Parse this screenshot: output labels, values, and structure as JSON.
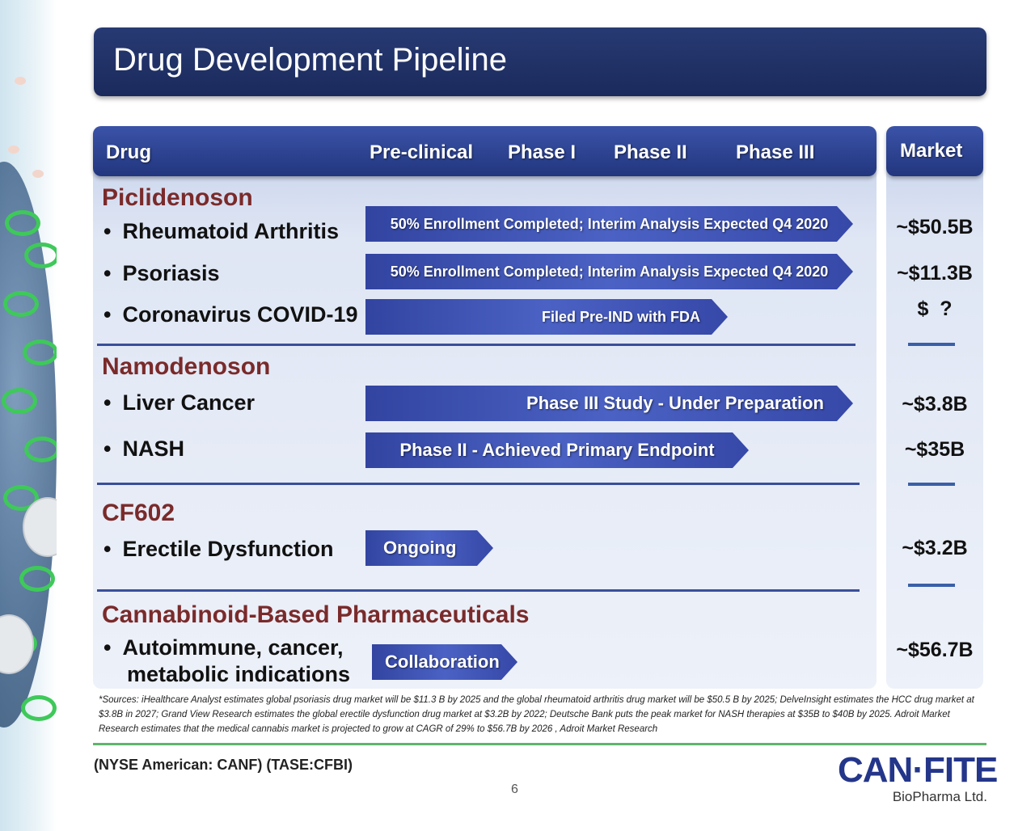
{
  "title": "Drug Development Pipeline",
  "header": {
    "drug": "Drug",
    "preclinical": "Pre-clinical",
    "phase1": "Phase I",
    "phase2": "Phase II",
    "phase3": "Phase III",
    "market": "Market"
  },
  "bullet": "•",
  "drugs": [
    {
      "name": "Piclidenoson",
      "indications": [
        {
          "label": "Rheumatoid Arthritis",
          "status": "50% Enrollment Completed; Interim Analysis Expected Q4 2020",
          "market": "~$50.5B"
        },
        {
          "label": "Psoriasis",
          "status": "50% Enrollment Completed; Interim Analysis Expected Q4 2020",
          "market": "~$11.3B"
        },
        {
          "label": "Coronavirus COVID-19",
          "status": "Filed Pre-IND with FDA",
          "market": "$  ?"
        }
      ]
    },
    {
      "name": "Namodenoson",
      "indications": [
        {
          "label": "Liver Cancer",
          "status": "Phase III Study - Under Preparation",
          "market": "~$3.8B"
        },
        {
          "label": "NASH",
          "status": "Phase II - Achieved Primary Endpoint",
          "market": "~$35B"
        }
      ]
    },
    {
      "name": "CF602",
      "indications": [
        {
          "label": "Erectile Dysfunction",
          "status": "Ongoing",
          "market": "~$3.2B"
        }
      ]
    },
    {
      "name": "Cannabinoid-Based Pharmaceuticals",
      "indications": [
        {
          "label_line1": "Autoimmune, cancer,",
          "label_line2": "metabolic indications",
          "status": "Collaboration",
          "market": "~$56.7B"
        }
      ]
    }
  ],
  "sources": "*Sources: iHealthcare Analyst estimates global psoriasis drug market will be $11.3 B by 2025 and the global rheumatoid arthritis drug market will be $50.5 B by 2025; DelveInsight estimates the HCC drug market at $3.8B in 2027; Grand View Research estimates the global erectile dysfunction drug market at $3.2B by 2022; Deutsche Bank puts the peak market for NASH therapies at $35B to $40B by 2025. Adroit Market Research estimates that the medical cannabis market is projected to grow at CAGR of 29% to $56.7B by 2026 , Adroit Market Research",
  "ticker": "(NYSE American: CANF) (TASE:CFBI)",
  "page_number": "6",
  "logo": {
    "name": "CAN·FITE",
    "sub": "BioPharma Ltd."
  },
  "colors": {
    "title_bg": "#1b2a5c",
    "header_bg": "#22367e",
    "drug_name": "#7a2a2a",
    "arrow": "#4b62c4",
    "footer_line": "#5fb56a"
  }
}
